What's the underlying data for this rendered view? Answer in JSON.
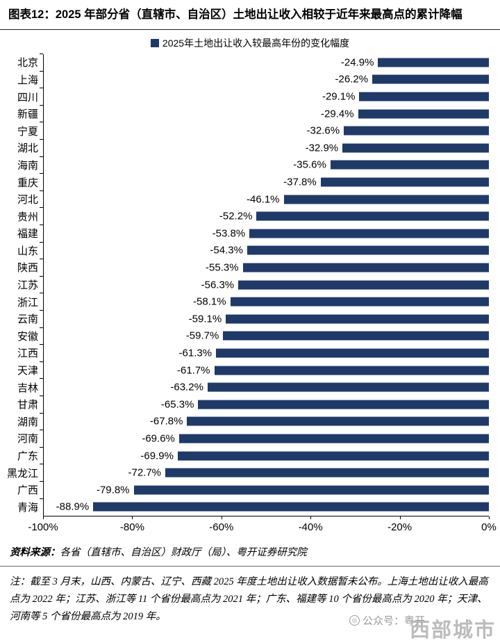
{
  "header": {
    "title": "图表12：2025 年部分省（直辖市、自治区）土地出让收入相较于近年来最高点的累计降幅"
  },
  "chart_data": {
    "type": "bar",
    "orientation": "horizontal",
    "legend": "2025年土地出让收入较最高年份的变化幅度",
    "bar_color": "#1f3a68",
    "categories": [
      "北京",
      "上海",
      "四川",
      "新疆",
      "宁夏",
      "湖北",
      "海南",
      "重庆",
      "河北",
      "贵州",
      "福建",
      "山东",
      "陕西",
      "江苏",
      "浙江",
      "云南",
      "安徽",
      "江西",
      "天津",
      "吉林",
      "甘肃",
      "湖南",
      "河南",
      "广东",
      "黑龙江",
      "广西",
      "青海"
    ],
    "values": [
      -24.9,
      -26.2,
      -29.1,
      -29.4,
      -32.6,
      -32.9,
      -35.6,
      -37.8,
      -46.1,
      -52.2,
      -53.8,
      -54.3,
      -55.3,
      -56.3,
      -58.1,
      -59.1,
      -59.7,
      -61.3,
      -61.7,
      -63.2,
      -65.3,
      -67.8,
      -69.6,
      -69.9,
      -72.7,
      -79.8,
      -88.9
    ],
    "labels": [
      "-24.9%",
      "-26.2%",
      "-29.1%",
      "-29.4%",
      "-32.6%",
      "-32.9%",
      "-35.6%",
      "-37.8%",
      "-46.1%",
      "-52.2%",
      "-53.8%",
      "-54.3%",
      "-55.3%",
      "-56.3%",
      "-58.1%",
      "-59.1%",
      "-59.7%",
      "-61.3%",
      "-61.7%",
      "-63.2%",
      "-65.3%",
      "-67.8%",
      "-69.6%",
      "-69.9%",
      "-72.7%",
      "-79.8%",
      "-88.9%"
    ],
    "xlim": [
      -100,
      0
    ],
    "xticks": [
      "-100%",
      "-80%",
      "-60%",
      "-40%",
      "-20%",
      "0%"
    ],
    "legend_position": "top",
    "grid": false
  },
  "footer": {
    "source_label": "资料来源：",
    "source_text": "各省（直辖市、自治区）财政厅（局）、粤开证券研究院",
    "note": "注：截至 3 月末，山西、内蒙古、辽宁、西藏 2025 年度土地出让收入数据暂未公布。上海土地出让收入最高点为 2022 年；江苏、浙江等 11 个省份最高点为 2021 年；广东、福建等 10 个省份最高点为 2020 年；天津、河南等 5 个省份最高点为 2019 年。",
    "watermark_account": "公众号：粤开",
    "watermark_stamp": "西部城市"
  }
}
